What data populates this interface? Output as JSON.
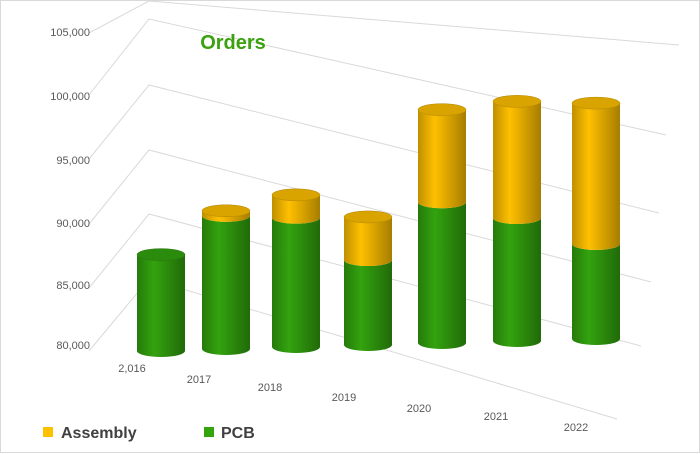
{
  "chart_data": {
    "type": "bar",
    "style": "3d-cylinder-stacked",
    "title": "Orders",
    "categories": [
      "2,016",
      "2017",
      "2018",
      "2019",
      "2020",
      "2021",
      "2022"
    ],
    "series": [
      {
        "name": "PCB",
        "color": "#33a30e",
        "values": [
          87600,
          90500,
          90200,
          86700,
          91100,
          89700,
          87500
        ]
      },
      {
        "name": "Assembly",
        "color": "#ffc000",
        "values": [
          0,
          400,
          1800,
          3400,
          7300,
          9200,
          11100
        ]
      }
    ],
    "ylim": [
      80000,
      105000
    ],
    "yticks": [
      "80,000",
      "85,000",
      "90,000",
      "95,000",
      "100,000",
      "105,000"
    ],
    "grid": true,
    "legend_position": "bottom-left",
    "xlabel": "",
    "ylabel": ""
  },
  "colors": {
    "title": "#3aa10f",
    "gridline": "#d9d9d9",
    "axis_text": "#595959"
  }
}
